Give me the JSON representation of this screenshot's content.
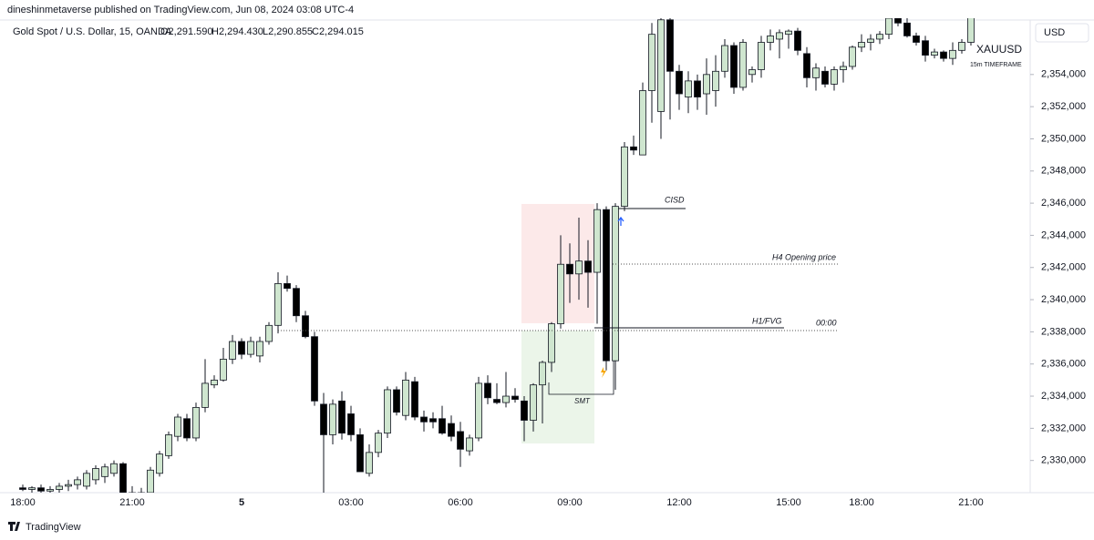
{
  "header": {
    "publisher": "dineshinmetaverse published on TradingView.com, Jun 08, 2024 03:08 UTC-4",
    "symbol": "Gold Spot / U.S. Dollar, 15, OANDA",
    "open": "O2,291.590",
    "high": "H2,294.430",
    "low": "L2,290.855",
    "close": "C2,294.015"
  },
  "chart_data": {
    "type": "candlestick",
    "currency": "USD",
    "ticker": "XAUUSD",
    "timeframe": "15m TIMEFRAME",
    "annotations": {
      "cisd": "CISD",
      "h4": "H4 Opening price",
      "fvg": "H1/FVG",
      "midnight": "00:00",
      "smt": "SMT"
    },
    "up_color": "#cfe6cf",
    "down_color": "#000000",
    "grid": false,
    "ylim": [
      2328,
      2357.5
    ],
    "yticks": [
      {
        "value": 2330,
        "label": "2,330,000"
      },
      {
        "value": 2332,
        "label": "2,332,000"
      },
      {
        "value": 2334,
        "label": "2,334,000"
      },
      {
        "value": 2336,
        "label": "2,336,000"
      },
      {
        "value": 2338,
        "label": "2,338,000"
      },
      {
        "value": 2340,
        "label": "2,340,000"
      },
      {
        "value": 2342,
        "label": "2,342,000"
      },
      {
        "value": 2344,
        "label": "2,344,000"
      },
      {
        "value": 2346,
        "label": "2,346,000"
      },
      {
        "value": 2348,
        "label": "2,348,000"
      },
      {
        "value": 2350,
        "label": "2,350,000"
      },
      {
        "value": 2352,
        "label": "2,352,000"
      },
      {
        "value": 2354,
        "label": "2,354,000"
      }
    ],
    "categories": [
      "18:00",
      null,
      null,
      null,
      null,
      null,
      null,
      null,
      null,
      null,
      null,
      null,
      "21:00",
      null,
      null,
      null,
      null,
      null,
      null,
      null,
      null,
      null,
      null,
      null,
      "5",
      null,
      null,
      null,
      null,
      null,
      null,
      null,
      null,
      null,
      null,
      null,
      "03:00",
      null,
      null,
      null,
      null,
      null,
      null,
      null,
      null,
      null,
      null,
      null,
      "06:00",
      null,
      null,
      null,
      null,
      null,
      null,
      null,
      null,
      null,
      null,
      null,
      "09:00",
      null,
      null,
      null,
      null,
      null,
      null,
      null,
      null,
      null,
      null,
      null,
      "12:00",
      null,
      null,
      null,
      null,
      null,
      null,
      null,
      null,
      null,
      null,
      null,
      "15:00",
      null,
      null,
      null,
      null,
      null,
      null,
      null,
      "18:00",
      null,
      null,
      null,
      null,
      null,
      null,
      null,
      null,
      null,
      null,
      null,
      "21:00"
    ],
    "open": [
      2328.3,
      2328.2,
      2328.3,
      2328.1,
      2328.2,
      2328.4,
      2328.5,
      2328.4,
      2328.8,
      2329.0,
      2329.2,
      2329.8,
      2328.0,
      2327.8,
      2328.0,
      2329.2,
      2330.3,
      2331.5,
      2332.6,
      2331.4,
      2333.3,
      2334.7,
      2335.0,
      2336.3,
      2337.4,
      2336.6,
      2336.5,
      2337.4,
      2338.4,
      2341.0,
      2340.7,
      2339.0,
      2337.7,
      2333.5,
      2331.6,
      2333.7,
      2332.9,
      2331.6,
      2329.2,
      2330.5,
      2331.7,
      2334.4,
      2332.8,
      2334.9,
      2332.7,
      2332.6,
      2332.6,
      2332.3,
      2331.8,
      2330.6,
      2331.4,
      2334.8,
      2333.8,
      2333.6,
      2334.0,
      2333.7,
      2332.5,
      2334.7,
      2336.1,
      2338.5,
      2342.2,
      2341.6,
      2342.4,
      2341.7,
      2345.6,
      2336.2,
      2345.8,
      2349.5,
      2349.0,
      2353.0,
      2351.7,
      2357.4,
      2354.2,
      2352.6,
      2353.6,
      2352.8,
      2353.0,
      2354.2,
      2355.8,
      2353.2,
      2354.0,
      2354.3,
      2356.0,
      2356.2,
      2356.5,
      2356.7,
      2355.3,
      2353.8,
      2354.2,
      2353.4,
      2354.3,
      2354.5,
      2355.7,
      2356.0,
      2356.2,
      2356.5,
      2357.5,
      2357.2,
      2356.4,
      2356.1,
      2355.2,
      2355.4,
      2355.0,
      2355.5,
      2356.0
    ],
    "high": [
      2328.5,
      2328.4,
      2328.5,
      2328.4,
      2328.6,
      2328.8,
      2329.0,
      2329.4,
      2329.7,
      2329.8,
      2330.0,
      2329.9,
      2328.4,
      2328.3,
      2329.6,
      2330.6,
      2331.8,
      2332.9,
      2332.9,
      2333.6,
      2336.3,
      2335.3,
      2337.0,
      2337.8,
      2337.6,
      2337.7,
      2337.7,
      2338.6,
      2341.7,
      2341.5,
      2340.9,
      2339.3,
      2338.0,
      2334.2,
      2333.8,
      2334.3,
      2333.4,
      2332.0,
      2331.0,
      2331.9,
      2334.6,
      2334.6,
      2335.5,
      2335.2,
      2333.1,
      2333.0,
      2333.4,
      2332.8,
      2332.4,
      2331.6,
      2335.2,
      2335.3,
      2334.8,
      2335.5,
      2334.5,
      2334.0,
      2334.8,
      2336.2,
      2338.6,
      2344.0,
      2343.5,
      2345.1,
      2343.7,
      2346.0,
      2345.8,
      2346.0,
      2349.8,
      2350.2,
      2353.5,
      2357.2,
      2357.6,
      2357.6,
      2354.6,
      2354.2,
      2354.0,
      2355.0,
      2355.2,
      2356.2,
      2356.0,
      2356.2,
      2354.5,
      2356.4,
      2356.8,
      2356.8,
      2356.8,
      2356.9,
      2355.7,
      2354.7,
      2354.5,
      2354.5,
      2354.8,
      2355.8,
      2356.5,
      2356.5,
      2356.7,
      2357.6,
      2357.8,
      2357.5,
      2356.6,
      2356.4,
      2355.6,
      2355.5,
      2356.0,
      2356.2,
      2357.8
    ],
    "low": [
      2328.1,
      2328.0,
      2328.0,
      2327.9,
      2328.0,
      2328.1,
      2328.2,
      2328.2,
      2328.5,
      2328.6,
      2329.0,
      2327.5,
      2327.5,
      2327.2,
      2327.8,
      2329.0,
      2330.1,
      2331.2,
      2331.2,
      2331.2,
      2333.0,
      2334.5,
      2334.9,
      2336.0,
      2336.3,
      2336.4,
      2336.1,
      2337.2,
      2337.9,
      2340.5,
      2338.6,
      2337.6,
      2333.4,
      2328.0,
      2331.0,
      2331.3,
      2331.2,
      2329.3,
      2329.0,
      2330.2,
      2331.4,
      2332.8,
      2332.5,
      2332.5,
      2331.8,
      2332.0,
      2331.6,
      2331.2,
      2329.6,
      2330.3,
      2331.2,
      2333.5,
      2333.5,
      2333.3,
      2333.6,
      2331.2,
      2331.8,
      2332.3,
      2335.5,
      2338.2,
      2339.8,
      2340.0,
      2339.5,
      2338.5,
      2335.6,
      2334.4,
      2345.5,
      2349.0,
      2349.0,
      2351.0,
      2350.0,
      2351.2,
      2351.8,
      2351.6,
      2351.8,
      2351.5,
      2352.0,
      2353.8,
      2352.8,
      2353.0,
      2353.5,
      2353.8,
      2355.5,
      2355.0,
      2355.6,
      2355.2,
      2353.2,
      2353.0,
      2353.2,
      2353.0,
      2353.5,
      2354.3,
      2355.4,
      2355.5,
      2355.9,
      2356.2,
      2357.0,
      2356.3,
      2355.8,
      2354.8,
      2355.0,
      2354.8,
      2354.6,
      2355.3,
      2355.8
    ],
    "close": [
      2328.2,
      2328.3,
      2328.1,
      2328.2,
      2328.4,
      2328.5,
      2328.8,
      2329.2,
      2329.5,
      2329.6,
      2329.8,
      2328.0,
      2327.8,
      2328.0,
      2329.4,
      2330.4,
      2331.6,
      2332.7,
      2331.4,
      2333.3,
      2334.8,
      2335.0,
      2336.3,
      2337.4,
      2336.6,
      2337.4,
      2337.4,
      2338.4,
      2341.0,
      2340.7,
      2339.0,
      2337.7,
      2333.7,
      2331.6,
      2333.5,
      2331.7,
      2331.6,
      2329.3,
      2330.5,
      2331.7,
      2334.4,
      2333.0,
      2335.0,
      2332.7,
      2332.4,
      2332.4,
      2331.7,
      2331.5,
      2330.7,
      2331.4,
      2334.8,
      2333.9,
      2333.6,
      2334.0,
      2333.8,
      2332.5,
      2334.7,
      2336.1,
      2338.5,
      2342.2,
      2341.6,
      2342.4,
      2341.7,
      2345.6,
      2336.2,
      2345.8,
      2349.5,
      2349.3,
      2353.0,
      2356.5,
      2357.4,
      2354.2,
      2352.8,
      2353.6,
      2352.6,
      2354.0,
      2354.2,
      2355.8,
      2353.2,
      2356.0,
      2354.3,
      2356.0,
      2356.4,
      2356.6,
      2356.7,
      2355.5,
      2353.8,
      2354.4,
      2353.4,
      2354.3,
      2354.5,
      2355.7,
      2356.0,
      2356.2,
      2356.5,
      2357.5,
      2357.2,
      2356.4,
      2356.0,
      2355.2,
      2355.4,
      2355.0,
      2355.5,
      2356.0,
      2357.6
    ]
  },
  "footer": {
    "brand": "TradingView"
  }
}
